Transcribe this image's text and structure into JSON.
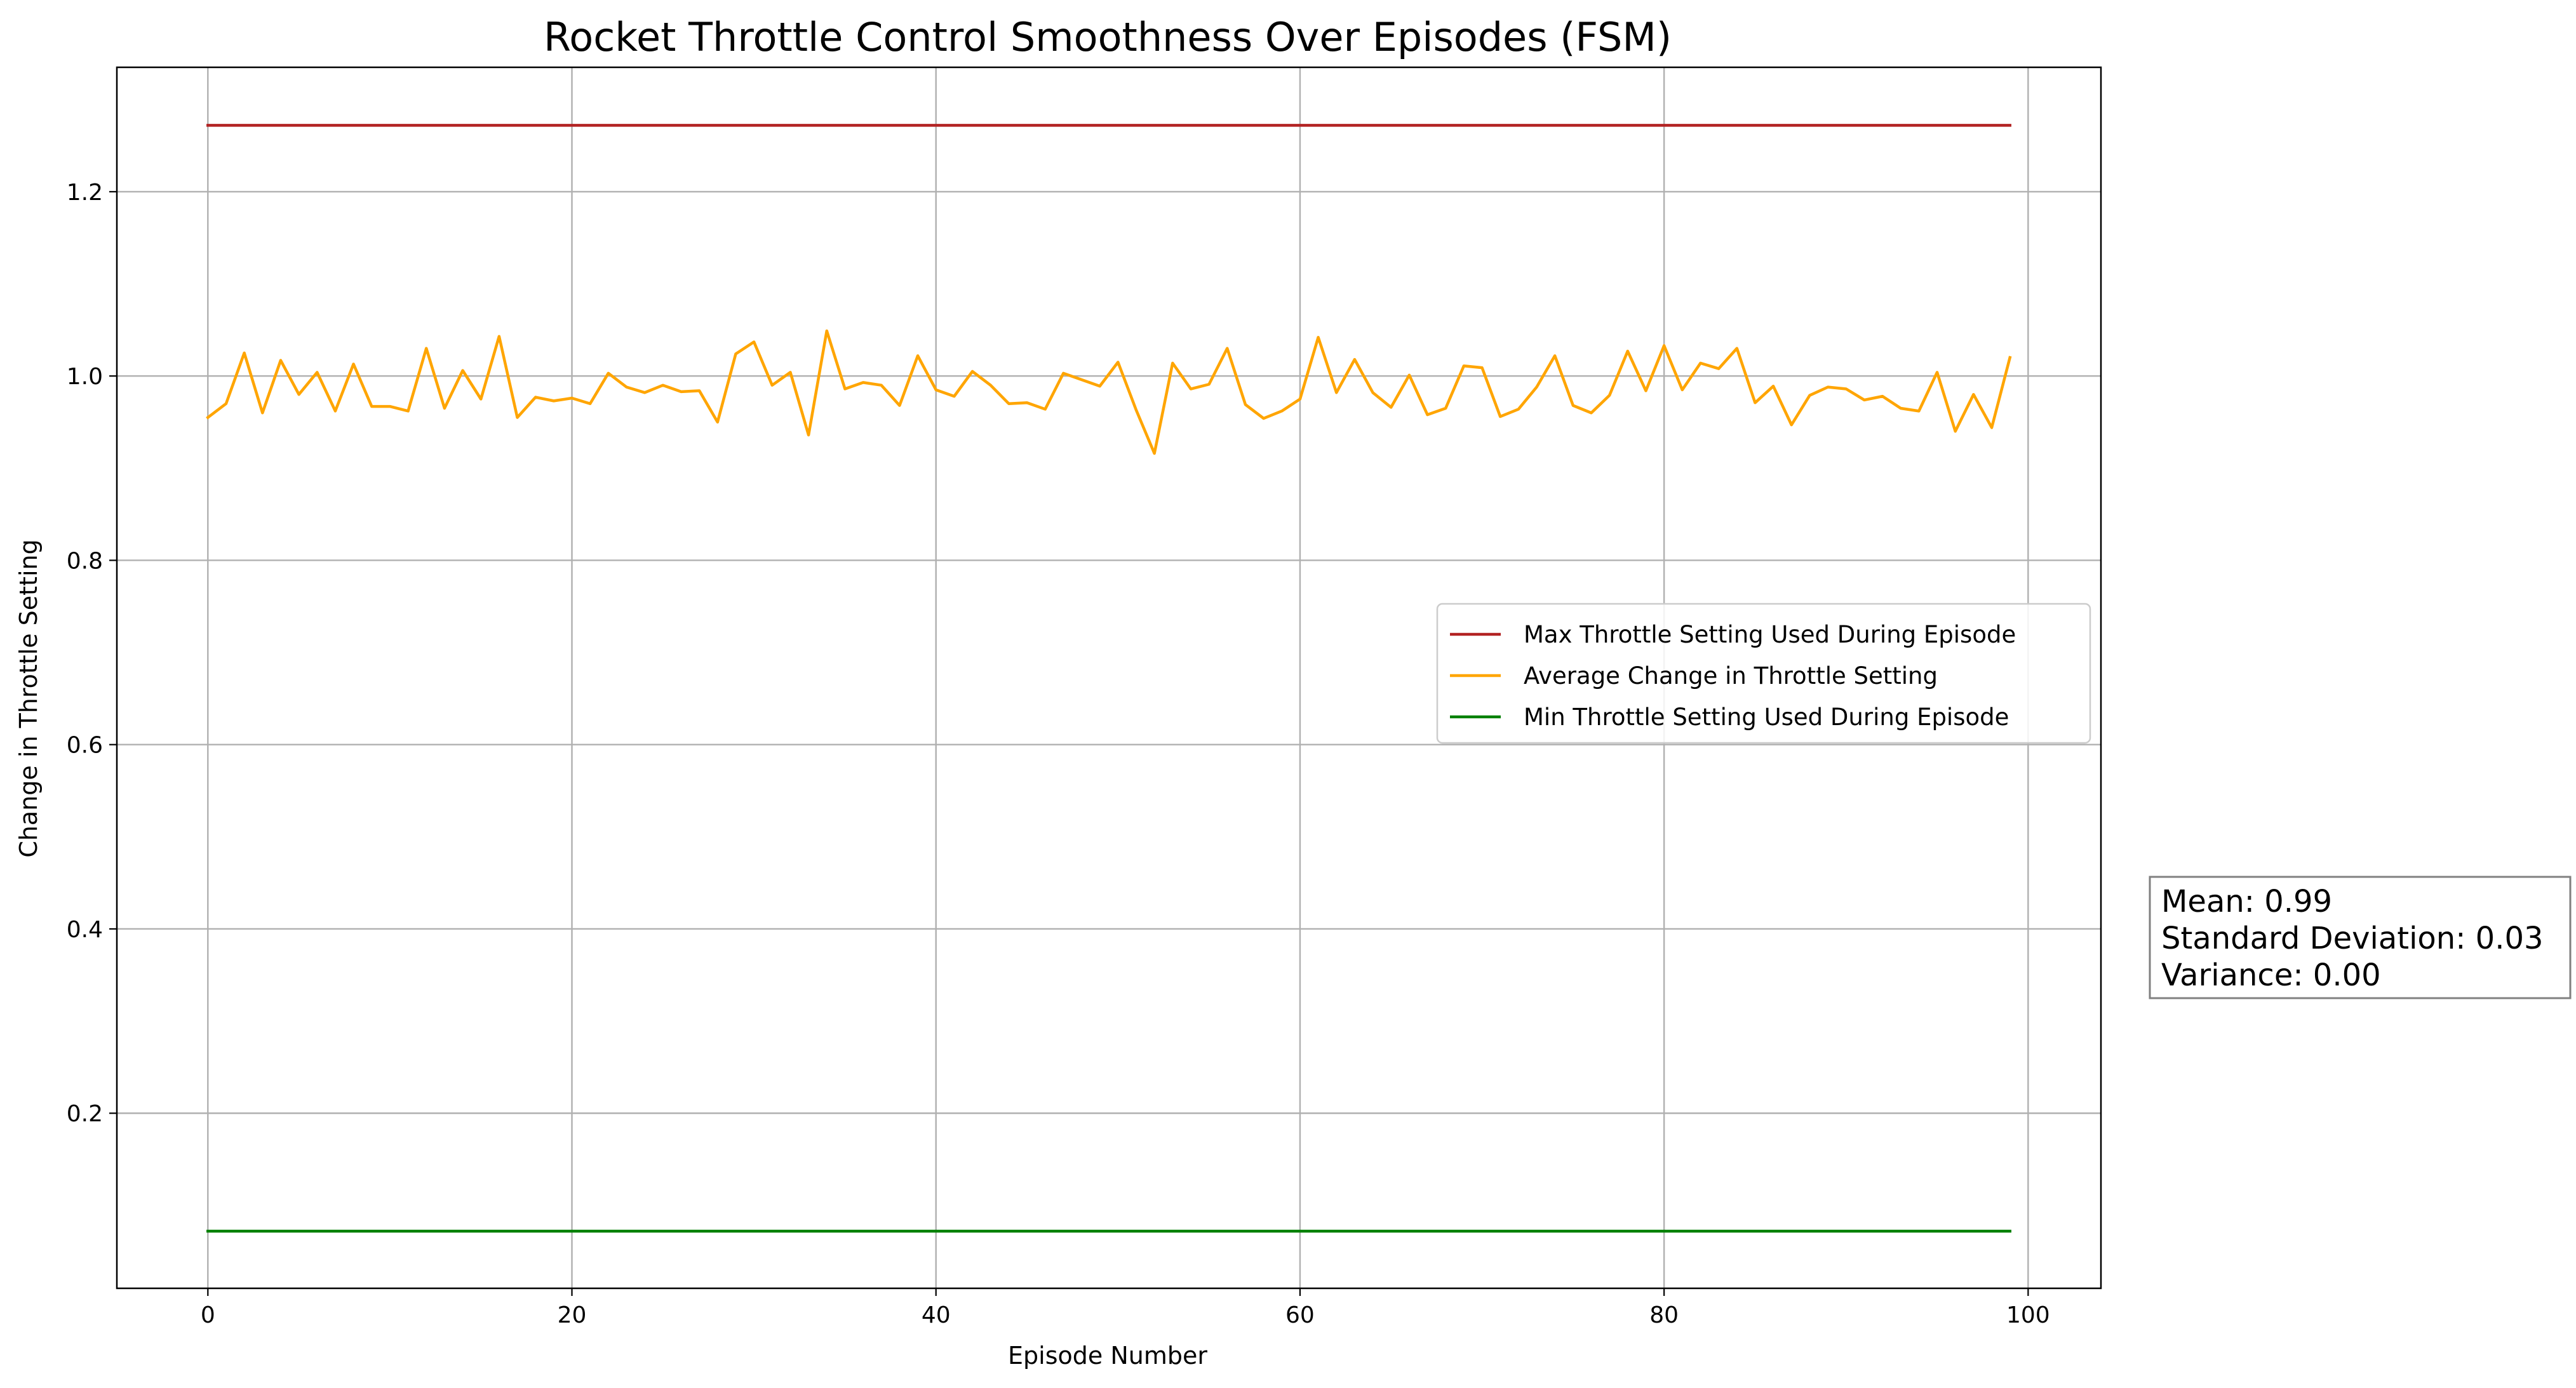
{
  "chart_data": {
    "type": "line",
    "title": "Rocket Throttle Control Smoothness Over Episodes (FSM)",
    "xlabel": "Episode Number",
    "ylabel": "Change in Throttle Setting",
    "xlim": [
      -5,
      104
    ],
    "ylim": [
      0.01,
      1.335
    ],
    "xticks": [
      0,
      20,
      40,
      60,
      80,
      100
    ],
    "yticks": [
      0.2,
      0.4,
      0.6,
      0.8,
      1.0,
      1.2
    ],
    "grid": true,
    "legend_position": "center-right",
    "x": [
      0,
      1,
      2,
      3,
      4,
      5,
      6,
      7,
      8,
      9,
      10,
      11,
      12,
      13,
      14,
      15,
      16,
      17,
      18,
      19,
      20,
      21,
      22,
      23,
      24,
      25,
      26,
      27,
      28,
      29,
      30,
      31,
      32,
      33,
      34,
      35,
      36,
      37,
      38,
      39,
      40,
      41,
      42,
      43,
      44,
      45,
      46,
      47,
      48,
      49,
      50,
      51,
      52,
      53,
      54,
      55,
      56,
      57,
      58,
      59,
      60,
      61,
      62,
      63,
      64,
      65,
      66,
      67,
      68,
      69,
      70,
      71,
      72,
      73,
      74,
      75,
      76,
      77,
      78,
      79,
      80,
      81,
      82,
      83,
      84,
      85,
      86,
      87,
      88,
      89,
      90,
      91,
      92,
      93,
      94,
      95,
      96,
      97,
      98,
      99
    ],
    "series": [
      {
        "name": "Max Throttle Setting Used During Episode",
        "color": "#b22222",
        "values": [
          1.272,
          1.272,
          1.272,
          1.272,
          1.272,
          1.272,
          1.272,
          1.272,
          1.272,
          1.272,
          1.272,
          1.272,
          1.272,
          1.272,
          1.272,
          1.272,
          1.272,
          1.272,
          1.272,
          1.272,
          1.272,
          1.272,
          1.272,
          1.272,
          1.272,
          1.272,
          1.272,
          1.272,
          1.272,
          1.272,
          1.272,
          1.272,
          1.272,
          1.272,
          1.272,
          1.272,
          1.272,
          1.272,
          1.272,
          1.272,
          1.272,
          1.272,
          1.272,
          1.272,
          1.272,
          1.272,
          1.272,
          1.272,
          1.272,
          1.272,
          1.272,
          1.272,
          1.272,
          1.272,
          1.272,
          1.272,
          1.272,
          1.272,
          1.272,
          1.272,
          1.272,
          1.272,
          1.272,
          1.272,
          1.272,
          1.272,
          1.272,
          1.272,
          1.272,
          1.272,
          1.272,
          1.272,
          1.272,
          1.272,
          1.272,
          1.272,
          1.272,
          1.272,
          1.272,
          1.272,
          1.272,
          1.272,
          1.272,
          1.272,
          1.272,
          1.272,
          1.272,
          1.272,
          1.272,
          1.272,
          1.272,
          1.272,
          1.272,
          1.272,
          1.272,
          1.272,
          1.272,
          1.272,
          1.272,
          1.272
        ]
      },
      {
        "name": "Average Change in Throttle Setting",
        "color": "#ffa500",
        "values": [
          0.955,
          0.97,
          1.025,
          0.96,
          1.017,
          0.98,
          1.004,
          0.962,
          1.013,
          0.967,
          0.967,
          0.962,
          1.03,
          0.965,
          1.006,
          0.975,
          1.043,
          0.955,
          0.977,
          0.973,
          0.976,
          0.97,
          1.003,
          0.988,
          0.982,
          0.99,
          0.983,
          0.984,
          0.95,
          1.024,
          1.037,
          0.99,
          1.004,
          0.936,
          1.049,
          0.986,
          0.993,
          0.99,
          0.968,
          1.022,
          0.985,
          0.978,
          1.005,
          0.99,
          0.97,
          0.971,
          0.964,
          1.003,
          0.996,
          0.989,
          1.015,
          0.963,
          0.916,
          1.014,
          0.986,
          0.991,
          1.03,
          0.969,
          0.954,
          0.962,
          0.975,
          1.042,
          0.982,
          1.018,
          0.982,
          0.966,
          1.001,
          0.958,
          0.965,
          1.011,
          1.009,
          0.956,
          0.964,
          0.988,
          1.022,
          0.968,
          0.96,
          0.979,
          1.027,
          0.984,
          1.033,
          0.985,
          1.014,
          1.008,
          1.03,
          0.971,
          0.989,
          0.947,
          0.979,
          0.988,
          0.986,
          0.974,
          0.978,
          0.965,
          0.962,
          1.004,
          0.94,
          0.98,
          0.944,
          1.02
        ]
      },
      {
        "name": "Min Throttle Setting Used During Episode",
        "color": "#008000",
        "values": [
          0.072,
          0.072,
          0.072,
          0.072,
          0.072,
          0.072,
          0.072,
          0.072,
          0.072,
          0.072,
          0.072,
          0.072,
          0.072,
          0.072,
          0.072,
          0.072,
          0.072,
          0.072,
          0.072,
          0.072,
          0.072,
          0.072,
          0.072,
          0.072,
          0.072,
          0.072,
          0.072,
          0.072,
          0.072,
          0.072,
          0.072,
          0.072,
          0.072,
          0.072,
          0.072,
          0.072,
          0.072,
          0.072,
          0.072,
          0.072,
          0.072,
          0.072,
          0.072,
          0.072,
          0.072,
          0.072,
          0.072,
          0.072,
          0.072,
          0.072,
          0.072,
          0.072,
          0.072,
          0.072,
          0.072,
          0.072,
          0.072,
          0.072,
          0.072,
          0.072,
          0.072,
          0.072,
          0.072,
          0.072,
          0.072,
          0.072,
          0.072,
          0.072,
          0.072,
          0.072,
          0.072,
          0.072,
          0.072,
          0.072,
          0.072,
          0.072,
          0.072,
          0.072,
          0.072,
          0.072,
          0.072,
          0.072,
          0.072,
          0.072,
          0.072,
          0.072,
          0.072,
          0.072,
          0.072,
          0.072,
          0.072,
          0.072,
          0.072,
          0.072,
          0.072,
          0.072,
          0.072,
          0.072,
          0.072,
          0.072
        ]
      }
    ],
    "stats_box": {
      "lines": [
        "Mean: 0.99",
        "Standard Deviation: 0.03",
        "Variance: 0.00"
      ]
    }
  }
}
